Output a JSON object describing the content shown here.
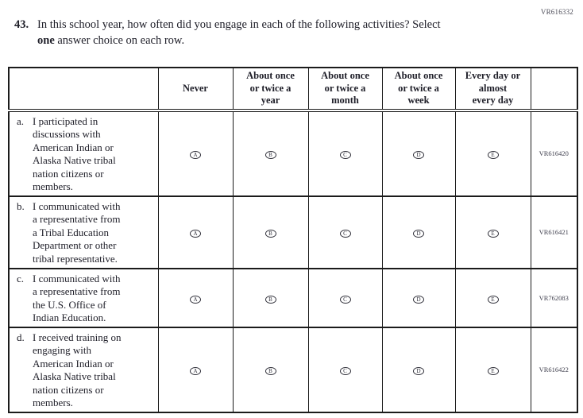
{
  "page": {
    "form_code_top_right": "VR616332"
  },
  "question": {
    "number": "43.",
    "line1": "In this school year, how often did you engage in each of the following activities? Select",
    "bold_word": "one",
    "line2_rest": "answer choice on each row."
  },
  "table": {
    "option_letters": [
      "A",
      "B",
      "C",
      "D",
      "E"
    ],
    "columns": [
      {
        "label": "Never",
        "lines": [
          "Never"
        ]
      },
      {
        "label": "About once or twice a year",
        "lines": [
          "About once",
          "or twice a",
          "year"
        ]
      },
      {
        "label": "About once or twice a month",
        "lines": [
          "About once",
          "or twice a",
          "month"
        ]
      },
      {
        "label": "About once or twice a week",
        "lines": [
          "About once",
          "or twice a",
          "week"
        ]
      },
      {
        "label": "Every day or almost every day",
        "lines": [
          "Every day or",
          "almost",
          "every day"
        ]
      }
    ],
    "rows": [
      {
        "label": "a.",
        "statement": "I participated in discussions with American Indian or Alaska Native tribal nation citizens or members.",
        "statement_lines": [
          "I participated in",
          "discussions with",
          "American Indian or",
          "Alaska Native tribal",
          "nation citizens or",
          "members."
        ],
        "code": "VR616420"
      },
      {
        "label": "b.",
        "statement": "I communicated with a representative from a Tribal Education Department or other tribal representative.",
        "statement_lines": [
          "I communicated with",
          "a representative from",
          "a Tribal Education",
          "Department or other",
          "tribal representative."
        ],
        "code": "VR616421"
      },
      {
        "label": "c.",
        "statement": "I communicated with a representative from the U.S. Office of Indian Education.",
        "statement_lines": [
          "I communicated with",
          "a representative from",
          "the U.S. Office of",
          "Indian Education."
        ],
        "code": "VR762083"
      },
      {
        "label": "d.",
        "statement": "I received training on engaging with American Indian or Alaska Native tribal nation citizens or members.",
        "statement_lines": [
          "I received training on",
          "engaging with",
          "American Indian or",
          "Alaska Native tribal",
          "nation citizens or",
          "members."
        ],
        "code": "VR616422"
      }
    ]
  }
}
